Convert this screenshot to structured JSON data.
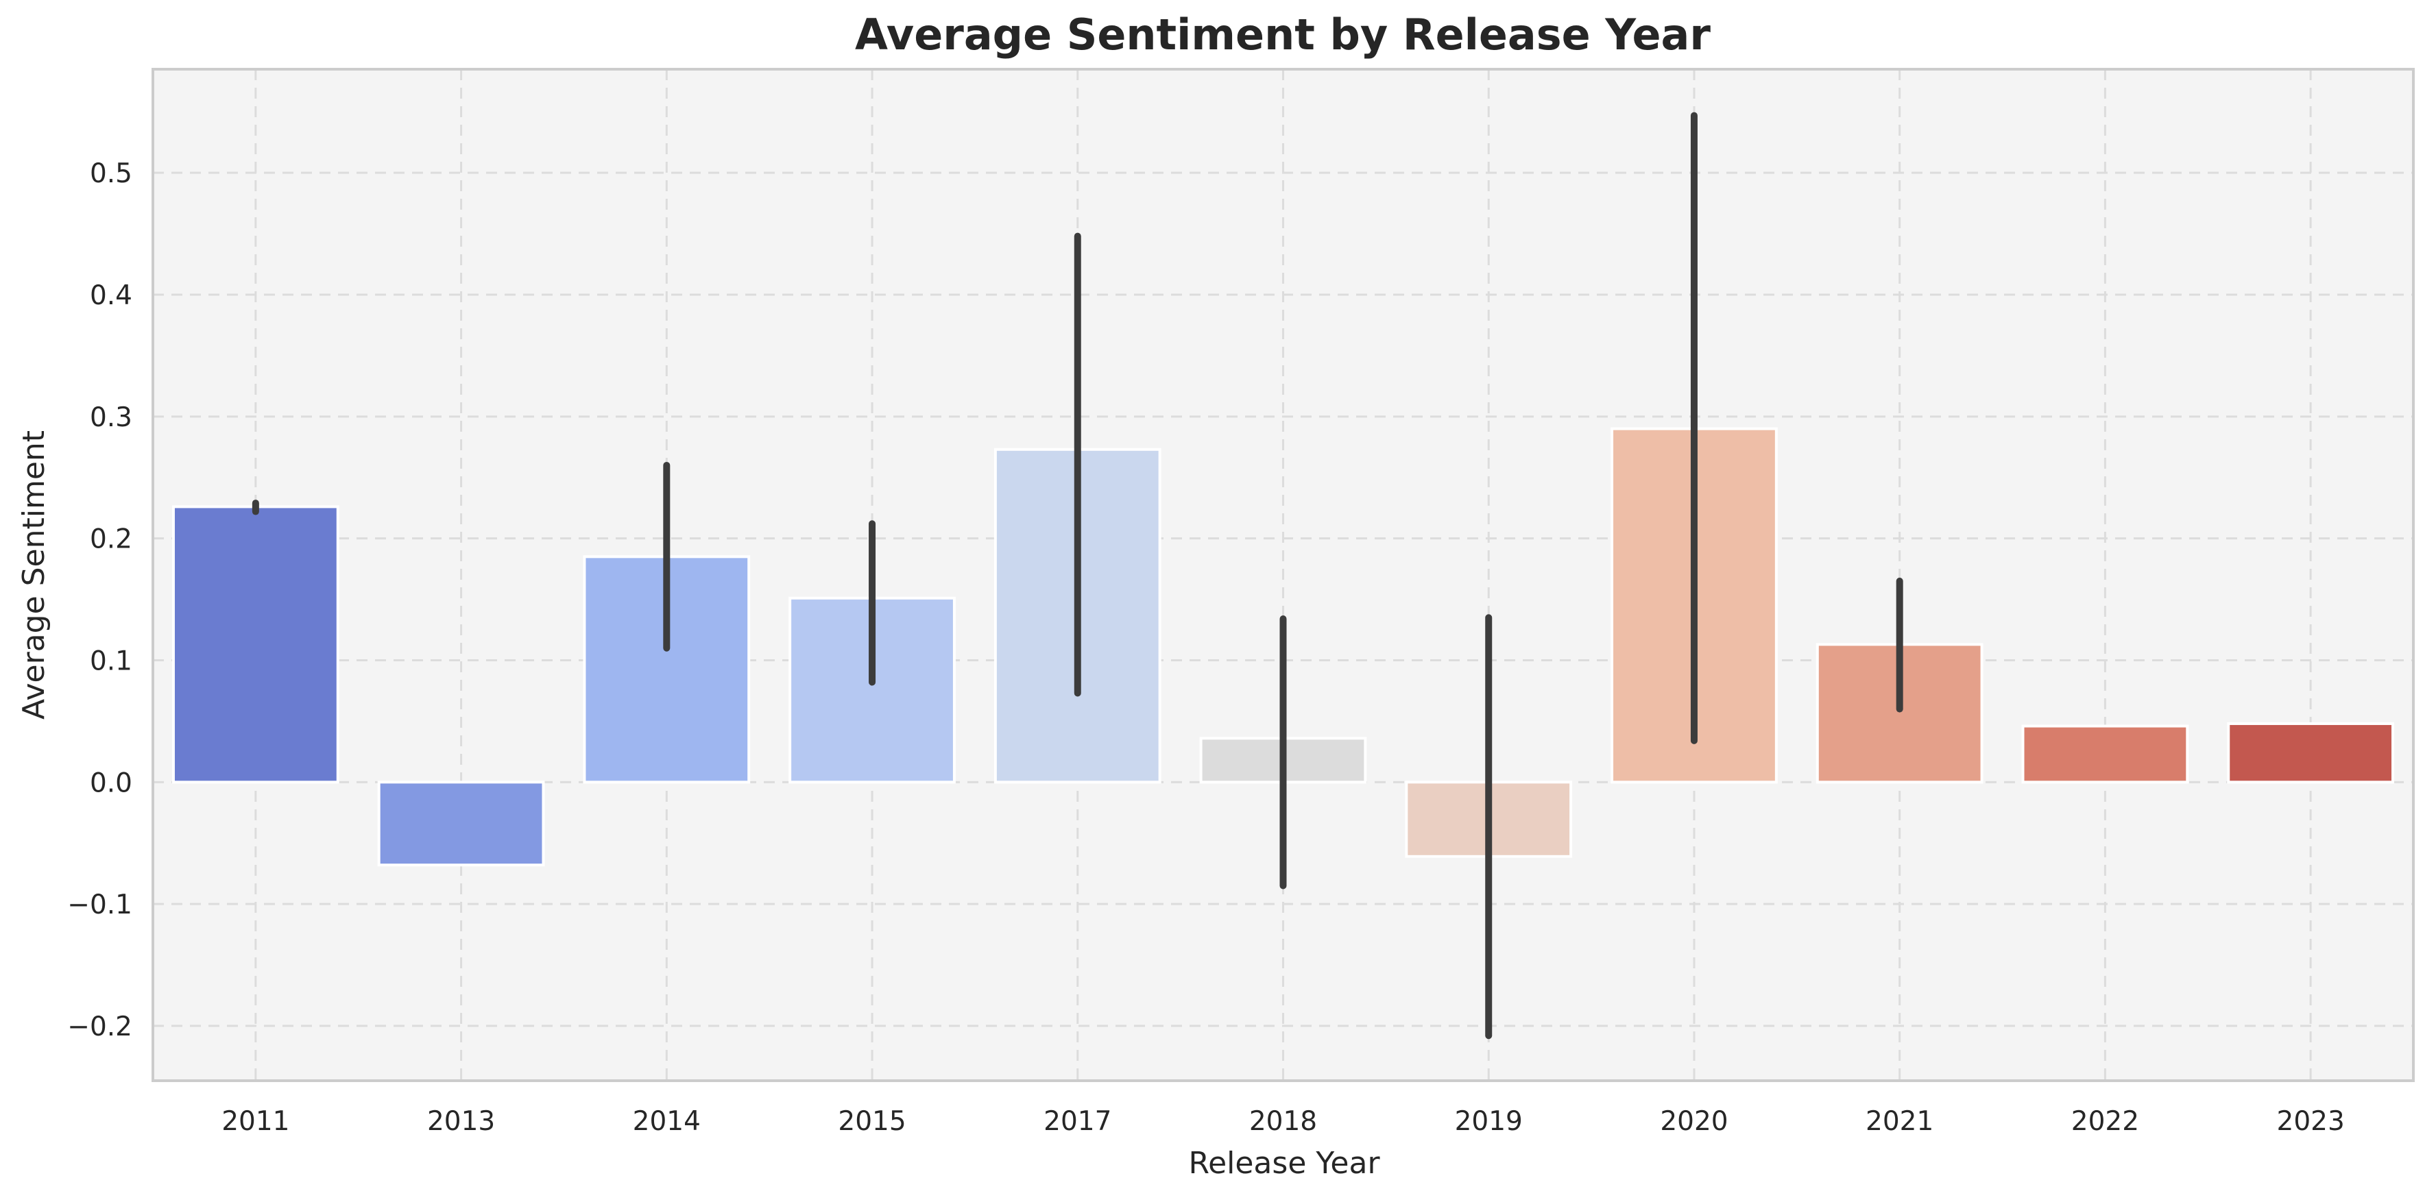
{
  "chart_data": {
    "type": "bar",
    "title": "Average Sentiment by Release Year",
    "xlabel": "Release Year",
    "ylabel": "Average Sentiment",
    "ylim": [
      -0.245,
      0.585
    ],
    "yticks": [
      -0.2,
      -0.1,
      0.0,
      0.1,
      0.2,
      0.3,
      0.4,
      0.5
    ],
    "ytick_labels": [
      "−0.2",
      "−0.1",
      "0.0",
      "0.1",
      "0.2",
      "0.3",
      "0.4",
      "0.5"
    ],
    "grid": true,
    "categories": [
      "2011",
      "2013",
      "2014",
      "2015",
      "2017",
      "2018",
      "2019",
      "2020",
      "2021",
      "2022",
      "2023"
    ],
    "values": [
      0.226,
      -0.068,
      0.185,
      0.151,
      0.273,
      0.036,
      -0.061,
      0.29,
      0.113,
      0.046,
      0.048
    ],
    "error_low": [
      0.222,
      null,
      0.11,
      0.082,
      0.073,
      -0.085,
      -0.208,
      0.034,
      0.06,
      null,
      null
    ],
    "error_high": [
      0.229,
      null,
      0.26,
      0.212,
      0.448,
      0.134,
      0.135,
      0.547,
      0.165,
      null,
      null
    ],
    "colors": [
      "#6a7cd0",
      "#8399e2",
      "#9eb6f0",
      "#b5c8f2",
      "#cad7ee",
      "#dcdcdc",
      "#eacfc2",
      "#eebea7",
      "#e4a08a",
      "#d87d6b",
      "#c3584f"
    ]
  }
}
